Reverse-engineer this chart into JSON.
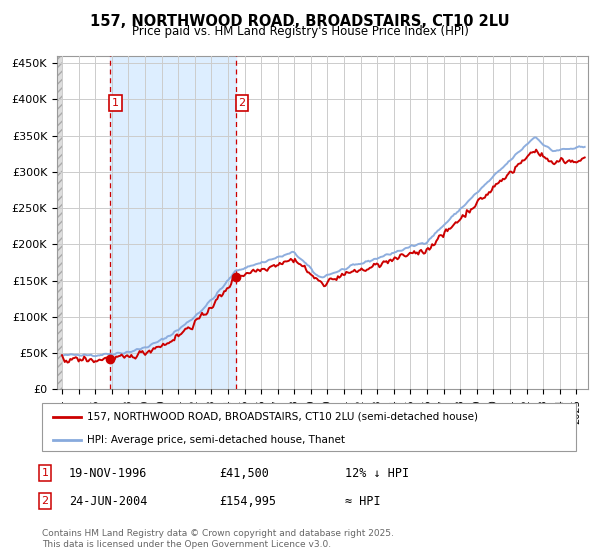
{
  "title_line1": "157, NORTHWOOD ROAD, BROADSTAIRS, CT10 2LU",
  "title_line2": "Price paid vs. HM Land Registry's House Price Index (HPI)",
  "sale1_date": 1996.88,
  "sale1_price": 41500,
  "sale2_date": 2004.48,
  "sale2_price": 154995,
  "sale_marker_color": "#cc0000",
  "hpi_line_color": "#88aadd",
  "price_line_color": "#cc0000",
  "shade_color": "#ddeeff",
  "ylim": [
    0,
    460000
  ],
  "yticks": [
    0,
    50000,
    100000,
    150000,
    200000,
    250000,
    300000,
    350000,
    400000,
    450000
  ],
  "ytick_labels": [
    "£0",
    "£50K",
    "£100K",
    "£150K",
    "£200K",
    "£250K",
    "£300K",
    "£350K",
    "£400K",
    "£450K"
  ],
  "xlim_start": 1993.7,
  "xlim_end": 2025.7,
  "legend_line1": "157, NORTHWOOD ROAD, BROADSTAIRS, CT10 2LU (semi-detached house)",
  "legend_line2": "HPI: Average price, semi-detached house, Thanet",
  "grid_color": "#cccccc",
  "background_color": "#ffffff",
  "footer_text": "Contains HM Land Registry data © Crown copyright and database right 2025.\nThis data is licensed under the Open Government Licence v3.0."
}
